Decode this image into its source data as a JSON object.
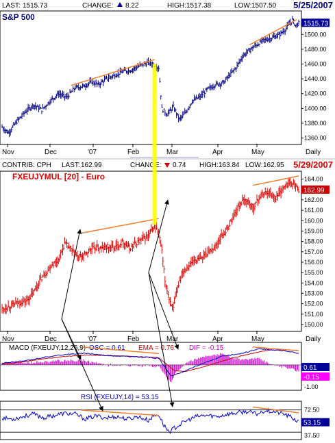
{
  "colors": {
    "price_up": "#000080",
    "fx_price": "#dd0000",
    "trendline": "#f08030",
    "highlight": "#ffff00",
    "arrow": "#000000",
    "macd_line": "#0000cc",
    "signal_line": "#cc0000",
    "histogram": "#cc00cc",
    "rsi_line": "#0000cc",
    "price_tag_blue": "#000099",
    "price_tag_red": "#cc0000",
    "tag_magenta": "#ff00ff"
  },
  "top_header": {
    "last_label": "LAST:",
    "last_value": "1515.73",
    "change_label": "CHANGE:",
    "change_value": "8.22",
    "high_label": "HIGH:",
    "high_value": "1517.38",
    "low_label": "LOW:",
    "low_value": "1507.50",
    "date": "5/25/2007"
  },
  "mid_header": {
    "contrib": "CONTRIB: CPH",
    "last_label": "LAST:",
    "last_value": "162.99",
    "change_label": "CHANGE:",
    "change_value": "0.74",
    "high_label": "HIGH:",
    "high_value": "163.84",
    "low_label": "LOW:",
    "low_value": "162.95",
    "date": "5/29/2007"
  },
  "chart_data": [
    {
      "type": "bar",
      "title": "S&P 500",
      "current_tag": "1515.73",
      "ylim": [
        1355,
        1528
      ],
      "yticks": [
        "1500.00",
        "1480.00",
        "1460.00",
        "1440.00",
        "1420.00",
        "1400.00",
        "1380.00",
        "1360.00"
      ],
      "xticks": [
        "Nov",
        "Dec",
        "'07",
        "Feb",
        "Mar",
        "Apr",
        "May",
        "Daily"
      ],
      "anchors": [
        [
          0,
          1375
        ],
        [
          6,
          1367
        ],
        [
          14,
          1382
        ],
        [
          22,
          1395
        ],
        [
          30,
          1405
        ],
        [
          38,
          1398
        ],
        [
          46,
          1410
        ],
        [
          54,
          1420
        ],
        [
          62,
          1415
        ],
        [
          70,
          1428
        ],
        [
          78,
          1430
        ],
        [
          86,
          1436
        ],
        [
          92,
          1432
        ],
        [
          100,
          1440
        ],
        [
          108,
          1445
        ],
        [
          116,
          1450
        ],
        [
          124,
          1452
        ],
        [
          132,
          1458
        ],
        [
          140,
          1462
        ],
        [
          144,
          1460
        ],
        [
          150,
          1455
        ],
        [
          153,
          1400
        ],
        [
          158,
          1392
        ],
        [
          164,
          1402
        ],
        [
          170,
          1385
        ],
        [
          176,
          1395
        ],
        [
          182,
          1410
        ],
        [
          190,
          1416
        ],
        [
          196,
          1425
        ],
        [
          204,
          1432
        ],
        [
          212,
          1435
        ],
        [
          218,
          1445
        ],
        [
          224,
          1455
        ],
        [
          230,
          1470
        ],
        [
          236,
          1478
        ],
        [
          242,
          1484
        ],
        [
          250,
          1492
        ],
        [
          258,
          1495
        ],
        [
          266,
          1500
        ],
        [
          272,
          1508
        ],
        [
          278,
          1520
        ],
        [
          281,
          1512
        ],
        [
          284,
          1515
        ]
      ],
      "trendlines": [
        [
          [
            66,
            1431
          ],
          [
            146,
            1466
          ]
        ],
        [
          [
            237,
            1486
          ],
          [
            282,
            1520
          ]
        ]
      ]
    },
    {
      "type": "bar",
      "title": "FXEUJYMUL [20] - Euro",
      "current_tag": "162.99",
      "ylim": [
        149.6,
        164.5
      ],
      "yticks": [
        "164.00",
        "163.00",
        "162.00",
        "161.00",
        "160.00",
        "159.00",
        "158.00",
        "157.00",
        "156.00",
        "155.00",
        "154.00",
        "153.00",
        "152.00",
        "151.00",
        "150.00"
      ],
      "xticks": [
        "Nov",
        "Dec",
        "'07",
        "Feb",
        "Mar",
        "Apr",
        "May",
        "Daily"
      ],
      "anchors": [
        [
          0,
          151.5
        ],
        [
          8,
          151.8
        ],
        [
          16,
          152.1
        ],
        [
          24,
          152.3
        ],
        [
          30,
          153
        ],
        [
          36,
          154.2
        ],
        [
          42,
          155
        ],
        [
          48,
          155.8
        ],
        [
          54,
          156.2
        ],
        [
          60,
          157.8
        ],
        [
          66,
          157.2
        ],
        [
          72,
          156.5
        ],
        [
          78,
          156.6
        ],
        [
          84,
          157.2
        ],
        [
          90,
          157.4
        ],
        [
          96,
          157.3
        ],
        [
          102,
          157.5
        ],
        [
          108,
          157.4
        ],
        [
          116,
          158
        ],
        [
          122,
          157.3
        ],
        [
          128,
          157.8
        ],
        [
          136,
          158.3
        ],
        [
          140,
          158.5
        ],
        [
          146,
          159.5
        ],
        [
          150,
          158.8
        ],
        [
          153,
          157
        ],
        [
          156,
          154.2
        ],
        [
          160,
          152.5
        ],
        [
          164,
          151.5
        ],
        [
          168,
          153.5
        ],
        [
          172,
          155
        ],
        [
          178,
          155.6
        ],
        [
          184,
          156.2
        ],
        [
          190,
          156.3
        ],
        [
          196,
          156.9
        ],
        [
          204,
          157.5
        ],
        [
          210,
          158.5
        ],
        [
          216,
          159.2
        ],
        [
          222,
          160.5
        ],
        [
          228,
          161.7
        ],
        [
          234,
          162
        ],
        [
          240,
          161.2
        ],
        [
          248,
          162.5
        ],
        [
          254,
          162.8
        ],
        [
          262,
          162.2
        ],
        [
          268,
          163
        ],
        [
          274,
          163.6
        ],
        [
          280,
          163.5
        ],
        [
          284,
          163
        ]
      ],
      "trendlines": [
        [
          [
            76,
            158.8
          ],
          [
            150,
            160.2
          ]
        ],
        [
          [
            240,
            163.4
          ],
          [
            284,
            164.3
          ]
        ]
      ]
    },
    {
      "type": "line",
      "title": "MACD (FXEUJY,12,26,9)",
      "osc_label": "OSC = 0.61",
      "ema_label": "EMA = 0.76",
      "dif_label": "DIF = -0.15",
      "tags": [
        "0.61",
        "-0.15"
      ],
      "ylim": [
        -1.2,
        1.05
      ],
      "yticks": [
        "-1.00"
      ],
      "series": [
        {
          "name": "OSC",
          "anchors": [
            [
              0,
              0.1
            ],
            [
              20,
              0.2
            ],
            [
              40,
              0.4
            ],
            [
              60,
              0.55
            ],
            [
              80,
              0.62
            ],
            [
              100,
              0.5
            ],
            [
              120,
              0.45
            ],
            [
              140,
              0.4
            ],
            [
              150,
              0.35
            ],
            [
              162,
              -0.6
            ],
            [
              172,
              -0.4
            ],
            [
              184,
              -0.1
            ],
            [
              196,
              0.15
            ],
            [
              210,
              0.45
            ],
            [
              230,
              0.6
            ],
            [
              245,
              0.85
            ],
            [
              260,
              0.8
            ],
            [
              270,
              0.75
            ],
            [
              284,
              0.61
            ]
          ]
        },
        {
          "name": "EMA",
          "anchors": [
            [
              0,
              0.05
            ],
            [
              20,
              0.15
            ],
            [
              40,
              0.32
            ],
            [
              60,
              0.45
            ],
            [
              80,
              0.52
            ],
            [
              100,
              0.5
            ],
            [
              120,
              0.46
            ],
            [
              140,
              0.42
            ],
            [
              150,
              0.38
            ],
            [
              165,
              -0.3
            ],
            [
              175,
              -0.35
            ],
            [
              190,
              -0.15
            ],
            [
              205,
              0.1
            ],
            [
              220,
              0.35
            ],
            [
              240,
              0.62
            ],
            [
              255,
              0.78
            ],
            [
              270,
              0.8
            ],
            [
              284,
              0.76
            ]
          ]
        }
      ],
      "trendlines": [
        [
          [
            76,
            0.95
          ],
          [
            150,
            0.6
          ]
        ],
        [
          [
            240,
            0.95
          ],
          [
            284,
            0.75
          ]
        ]
      ]
    },
    {
      "type": "line",
      "title": "RSI (FXEUJY,14) = 53.15",
      "current_tag": "53.15",
      "ylim": [
        28,
        84
      ],
      "yticks": [
        "72.50",
        "37.50"
      ],
      "anchors": [
        [
          0,
          60
        ],
        [
          10,
          58
        ],
        [
          20,
          62
        ],
        [
          30,
          66
        ],
        [
          40,
          60
        ],
        [
          50,
          64
        ],
        [
          60,
          67
        ],
        [
          70,
          66
        ],
        [
          80,
          58
        ],
        [
          90,
          63
        ],
        [
          100,
          60
        ],
        [
          110,
          62
        ],
        [
          120,
          58
        ],
        [
          130,
          62
        ],
        [
          140,
          56
        ],
        [
          145,
          63
        ],
        [
          150,
          65
        ],
        [
          155,
          48
        ],
        [
          160,
          38
        ],
        [
          166,
          45
        ],
        [
          176,
          55
        ],
        [
          186,
          62
        ],
        [
          196,
          64
        ],
        [
          206,
          62
        ],
        [
          216,
          66
        ],
        [
          226,
          68
        ],
        [
          234,
          70
        ],
        [
          244,
          66
        ],
        [
          252,
          72
        ],
        [
          260,
          70
        ],
        [
          270,
          66
        ],
        [
          278,
          60
        ],
        [
          284,
          53.15
        ]
      ],
      "trendlines": [
        [
          [
            76,
            72
          ],
          [
            150,
            64
          ]
        ],
        [
          [
            240,
            77
          ],
          [
            284,
            68
          ]
        ]
      ]
    }
  ]
}
